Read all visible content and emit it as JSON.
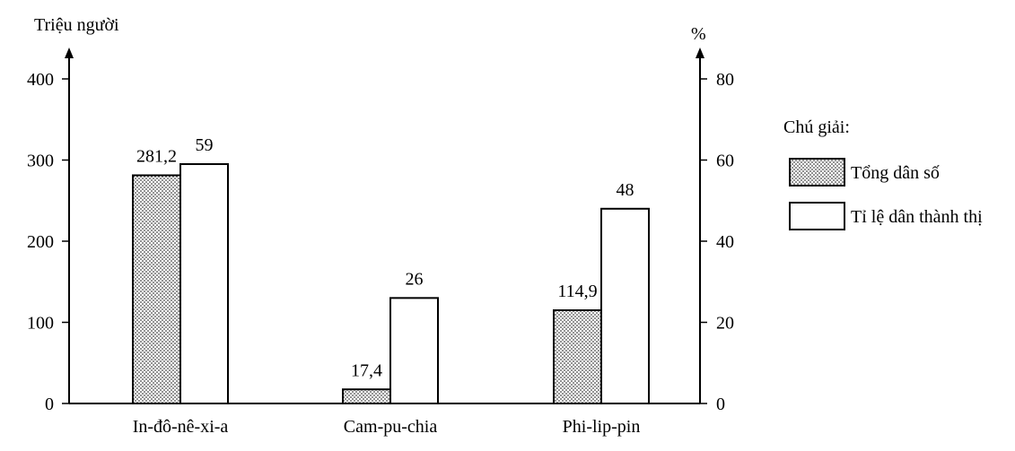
{
  "chart_data": {
    "type": "bar",
    "categories": [
      "In-đô-nê-xi-a",
      "Cam-pu-chia",
      "Phi-lip-pin"
    ],
    "left_axis": {
      "label": "Triệu người",
      "ylim": [
        0,
        400
      ],
      "ticks": [
        "0",
        "100",
        "200",
        "300",
        "400"
      ]
    },
    "right_axis": {
      "label": "%",
      "ylim": [
        0,
        80
      ],
      "ticks": [
        "0",
        "20",
        "40",
        "60",
        "80"
      ]
    },
    "series": [
      {
        "name": "Tổng dân số",
        "axis": "left",
        "pattern": "dotted",
        "values": [
          281.2,
          17.4,
          114.9
        ],
        "labels": [
          "281,2",
          "17,4",
          "114,9"
        ]
      },
      {
        "name": "Tỉ lệ dân thành thị",
        "axis": "right",
        "pattern": "white",
        "values": [
          59,
          26,
          48
        ],
        "labels": [
          "59",
          "26",
          "48"
        ]
      }
    ],
    "legend": {
      "title": "Chú giải:",
      "items": [
        "Tổng dân số",
        "Tỉ lệ dân thành thị"
      ],
      "placement": "right"
    },
    "grid": false
  }
}
